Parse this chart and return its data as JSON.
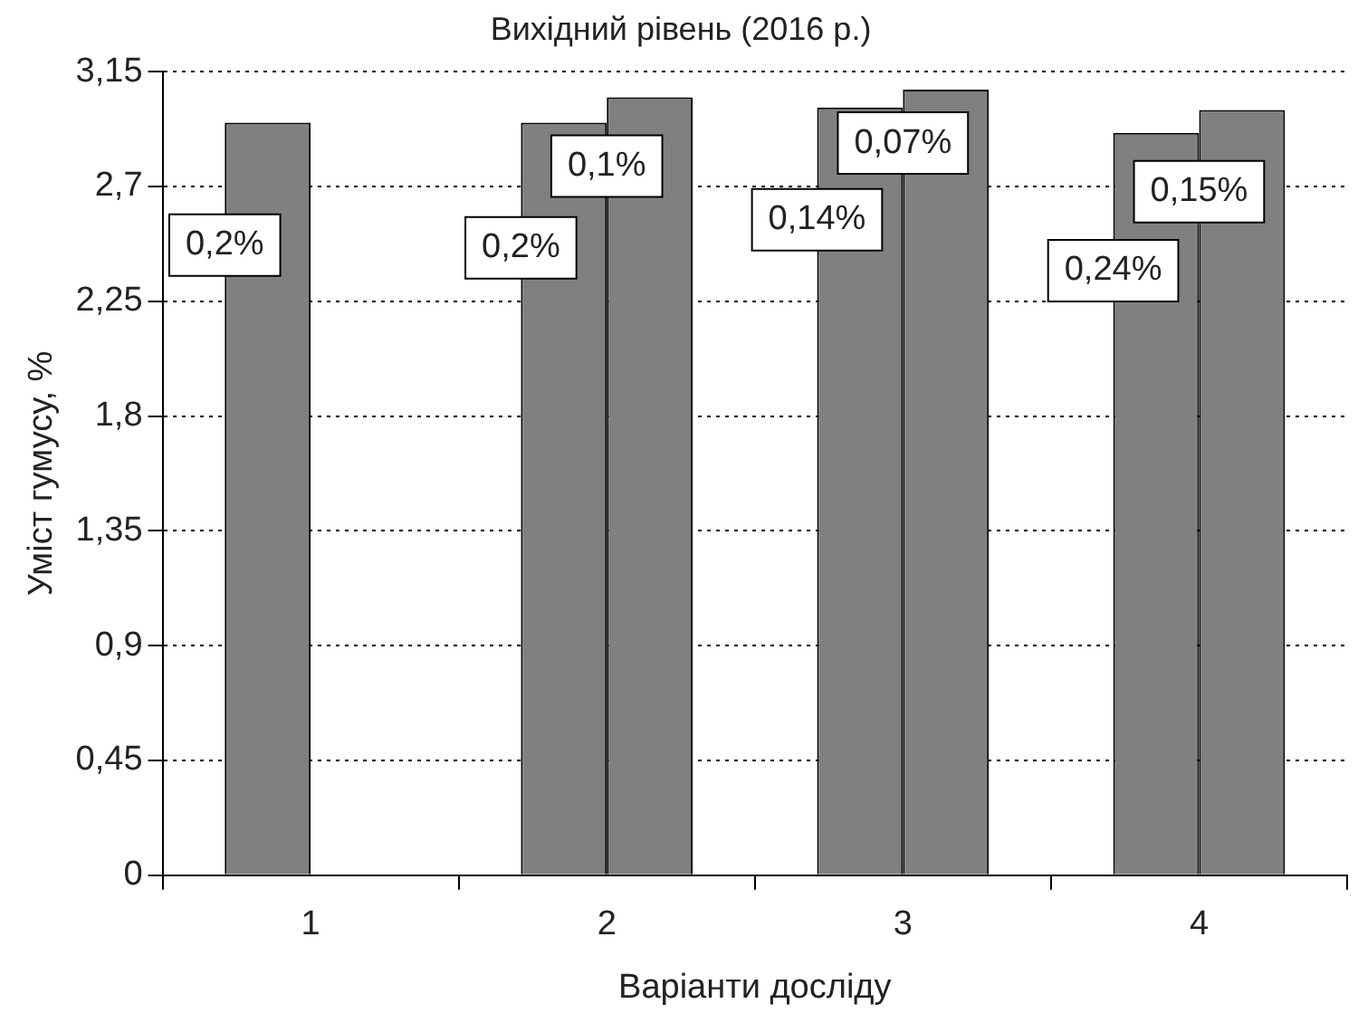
{
  "chart_data": {
    "type": "bar",
    "title": "Вихідний рівень (2016 р.)",
    "xlabel": "Варіанти досліду",
    "ylabel": "Уміст гумусу, %",
    "categories": [
      "1",
      "2",
      "3",
      "4"
    ],
    "series": [
      {
        "color": "#808080",
        "values": [
          2.95,
          2.95,
          3.01,
          2.91
        ]
      },
      {
        "color": "#808080",
        "values": [
          null,
          3.05,
          3.08,
          3.0
        ]
      }
    ],
    "annotations": [
      {
        "text": "0,2%",
        "x": "1",
        "y": 2.47
      },
      {
        "text": "0,2%",
        "x": "2",
        "y": 2.46
      },
      {
        "text": "0,1%",
        "x": "2",
        "y": 2.78
      },
      {
        "text": "0,14%",
        "x": "3",
        "y": 2.57
      },
      {
        "text": "0,07%",
        "x": "3",
        "y": 2.87
      },
      {
        "text": "0,24%",
        "x": "4",
        "y": 2.37
      },
      {
        "text": "0,15%",
        "x": "4",
        "y": 2.68
      }
    ],
    "ylim": [
      0,
      3.15
    ],
    "yticks": [
      0,
      {
        "value": 0.45,
        "label": "0,45"
      },
      {
        "value": 0.9,
        "label": "0,9"
      },
      {
        "value": 1.35,
        "label": "1,35"
      },
      {
        "value": 1.8,
        "label": "1,8"
      },
      {
        "value": 2.25,
        "label": "2,25"
      },
      {
        "value": 2.7,
        "label": "2,7"
      },
      {
        "value": 3.15,
        "label": "3,15"
      }
    ],
    "grid": "y",
    "legend": false
  }
}
